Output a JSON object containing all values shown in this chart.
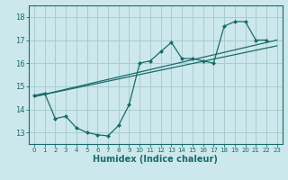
{
  "xlabel": "Humidex (Indice chaleur)",
  "bg_color": "#cce8ec",
  "grid_color": "#aacccc",
  "line_color": "#1a6b6b",
  "xlim": [
    -0.5,
    23.5
  ],
  "ylim": [
    12.5,
    18.5
  ],
  "xticks": [
    0,
    1,
    2,
    3,
    4,
    5,
    6,
    7,
    8,
    9,
    10,
    11,
    12,
    13,
    14,
    15,
    16,
    17,
    18,
    19,
    20,
    21,
    22,
    23
  ],
  "yticks": [
    13,
    14,
    15,
    16,
    17,
    18
  ],
  "scatter_x": [
    0,
    1,
    2,
    3,
    4,
    5,
    6,
    7,
    8,
    9,
    10,
    11,
    12,
    13,
    14,
    15,
    16,
    17,
    18,
    19,
    20,
    21,
    22
  ],
  "scatter_y": [
    14.6,
    14.7,
    13.6,
    13.7,
    13.2,
    13.0,
    12.9,
    12.85,
    13.3,
    14.2,
    16.0,
    16.1,
    16.5,
    16.9,
    16.2,
    16.2,
    16.1,
    16.0,
    17.6,
    17.8,
    17.8,
    17.0,
    17.0
  ],
  "line1_x": [
    0,
    23
  ],
  "line1_y": [
    14.55,
    17.0
  ],
  "line2_x": [
    0,
    23
  ],
  "line2_y": [
    14.55,
    16.75
  ],
  "xlabel_fontsize": 7,
  "tick_fontsize": 5,
  "lw": 0.9,
  "marker_size": 2.5
}
